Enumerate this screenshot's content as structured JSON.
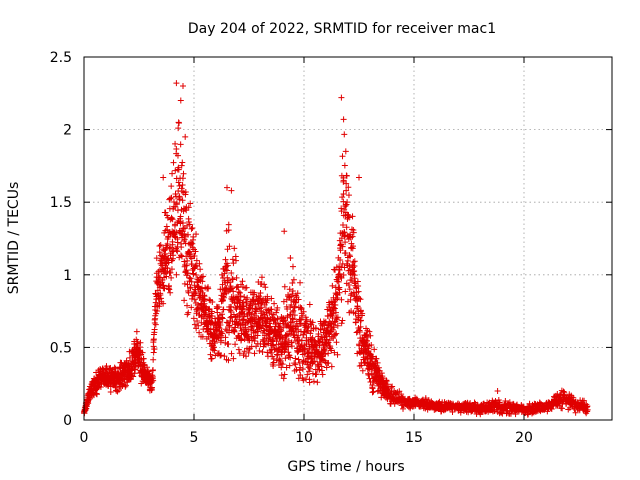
{
  "chart_data": {
    "type": "scatter",
    "title": "Day 204 of 2022, SRMTID for receiver mac1",
    "xlabel": "GPS time / hours",
    "ylabel": "SRMTID / TECUs",
    "xlim": [
      0,
      24
    ],
    "ylim": [
      0,
      2.5
    ],
    "x_ticks": [
      0,
      5,
      10,
      15,
      20
    ],
    "x_tick_labels": [
      "0",
      "5",
      "10",
      "15",
      "20"
    ],
    "y_ticks": [
      0,
      0.5,
      1,
      1.5,
      2,
      2.5
    ],
    "y_tick_labels": [
      "0",
      "0.5",
      "1",
      "1.5",
      "2",
      "2.5"
    ],
    "grid": true,
    "marker": "plus",
    "color": "#e00000",
    "series": [
      {
        "name": "mac1",
        "profile": [
          {
            "x": 0.0,
            "y": 0.05,
            "spread": 0.02
          },
          {
            "x": 0.3,
            "y": 0.2,
            "spread": 0.08
          },
          {
            "x": 0.8,
            "y": 0.3,
            "spread": 0.12
          },
          {
            "x": 1.5,
            "y": 0.28,
            "spread": 0.12
          },
          {
            "x": 2.0,
            "y": 0.33,
            "spread": 0.15
          },
          {
            "x": 2.4,
            "y": 0.45,
            "spread": 0.25
          },
          {
            "x": 2.8,
            "y": 0.3,
            "spread": 0.1
          },
          {
            "x": 3.1,
            "y": 0.25,
            "spread": 0.1
          },
          {
            "x": 3.3,
            "y": 0.9,
            "spread": 0.35
          },
          {
            "x": 3.8,
            "y": 1.1,
            "spread": 0.5
          },
          {
            "x": 4.3,
            "y": 1.5,
            "spread": 0.75
          },
          {
            "x": 4.7,
            "y": 1.2,
            "spread": 0.65
          },
          {
            "x": 5.0,
            "y": 0.95,
            "spread": 0.45
          },
          {
            "x": 5.5,
            "y": 0.75,
            "spread": 0.3
          },
          {
            "x": 6.0,
            "y": 0.55,
            "spread": 0.3
          },
          {
            "x": 6.5,
            "y": 0.9,
            "spread": 0.65
          },
          {
            "x": 7.0,
            "y": 0.75,
            "spread": 0.4
          },
          {
            "x": 7.5,
            "y": 0.65,
            "spread": 0.35
          },
          {
            "x": 8.0,
            "y": 0.75,
            "spread": 0.35
          },
          {
            "x": 8.5,
            "y": 0.6,
            "spread": 0.3
          },
          {
            "x": 9.0,
            "y": 0.55,
            "spread": 0.35
          },
          {
            "x": 9.5,
            "y": 0.7,
            "spread": 0.55
          },
          {
            "x": 10.0,
            "y": 0.55,
            "spread": 0.4
          },
          {
            "x": 10.5,
            "y": 0.45,
            "spread": 0.3
          },
          {
            "x": 11.0,
            "y": 0.55,
            "spread": 0.3
          },
          {
            "x": 11.5,
            "y": 0.8,
            "spread": 0.5
          },
          {
            "x": 11.8,
            "y": 1.4,
            "spread": 0.75
          },
          {
            "x": 12.2,
            "y": 1.1,
            "spread": 0.55
          },
          {
            "x": 12.6,
            "y": 0.55,
            "spread": 0.3
          },
          {
            "x": 13.2,
            "y": 0.35,
            "spread": 0.2
          },
          {
            "x": 13.8,
            "y": 0.18,
            "spread": 0.1
          },
          {
            "x": 14.5,
            "y": 0.12,
            "spread": 0.06
          },
          {
            "x": 16.0,
            "y": 0.1,
            "spread": 0.05
          },
          {
            "x": 18.0,
            "y": 0.08,
            "spread": 0.05
          },
          {
            "x": 18.8,
            "y": 0.1,
            "spread": 0.08
          },
          {
            "x": 20.0,
            "y": 0.07,
            "spread": 0.04
          },
          {
            "x": 21.0,
            "y": 0.09,
            "spread": 0.05
          },
          {
            "x": 21.8,
            "y": 0.15,
            "spread": 0.1
          },
          {
            "x": 22.5,
            "y": 0.1,
            "spread": 0.06
          },
          {
            "x": 22.9,
            "y": 0.08,
            "spread": 0.05
          }
        ],
        "peaks": [
          {
            "x": 4.2,
            "y": 2.32
          },
          {
            "x": 4.5,
            "y": 2.3
          },
          {
            "x": 4.4,
            "y": 2.2
          },
          {
            "x": 4.3,
            "y": 2.05
          },
          {
            "x": 4.6,
            "y": 1.95
          },
          {
            "x": 3.6,
            "y": 1.67
          },
          {
            "x": 6.5,
            "y": 1.6
          },
          {
            "x": 6.7,
            "y": 1.58
          },
          {
            "x": 11.7,
            "y": 2.22
          },
          {
            "x": 11.8,
            "y": 2.07
          },
          {
            "x": 11.9,
            "y": 1.85
          },
          {
            "x": 11.8,
            "y": 1.65
          },
          {
            "x": 12.5,
            "y": 1.67
          },
          {
            "x": 9.1,
            "y": 1.3
          },
          {
            "x": 18.8,
            "y": 0.2
          }
        ]
      }
    ]
  }
}
